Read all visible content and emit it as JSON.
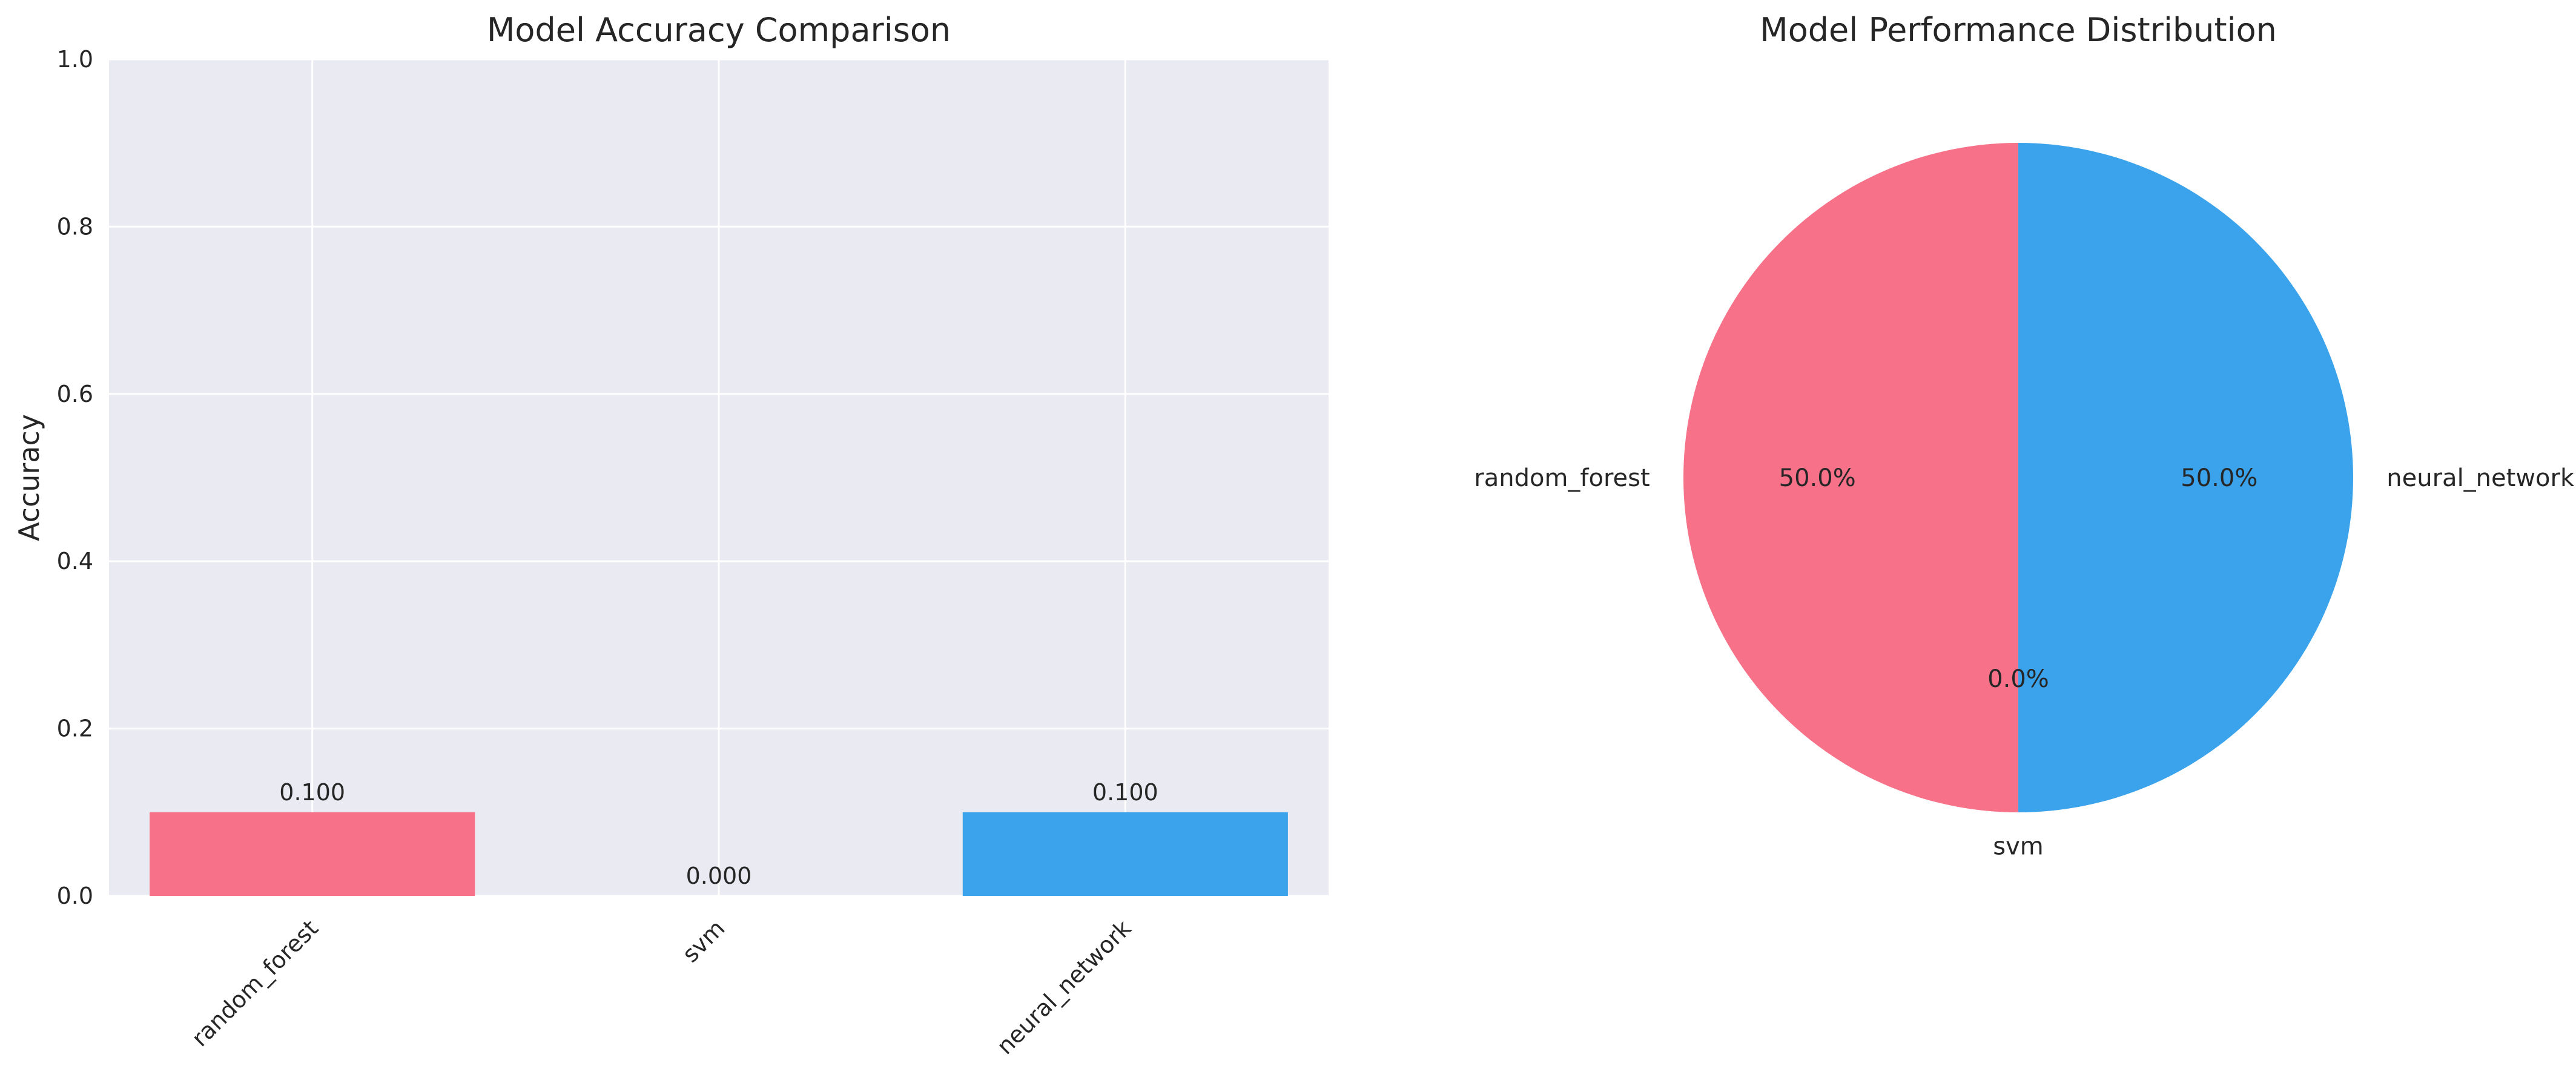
{
  "chart_data": [
    {
      "type": "bar",
      "title": "Model Accuracy Comparison",
      "xlabel": "",
      "ylabel": "Accuracy",
      "ylim": [
        0,
        1.0
      ],
      "yticks": [
        "0.0",
        "0.2",
        "0.4",
        "0.6",
        "0.8",
        "1.0"
      ],
      "grid": true,
      "categories": [
        "random_forest",
        "svm",
        "neural_network"
      ],
      "values": [
        0.1,
        0.0,
        0.1
      ],
      "value_labels": [
        "0.100",
        "0.000",
        "0.100"
      ],
      "colors": [
        "#f77189",
        "#bb9832",
        "#3ba3ec"
      ],
      "background": "#eaeaf2"
    },
    {
      "type": "pie",
      "title": "Model Performance Distribution",
      "labels": [
        "random_forest",
        "svm",
        "neural_network"
      ],
      "values": [
        0.1,
        0.0,
        0.1
      ],
      "pct_labels": [
        "50.0%",
        "0.0%",
        "50.0%"
      ],
      "colors": [
        "#f77189",
        "#bb9832",
        "#3ba3ec"
      ]
    }
  ]
}
